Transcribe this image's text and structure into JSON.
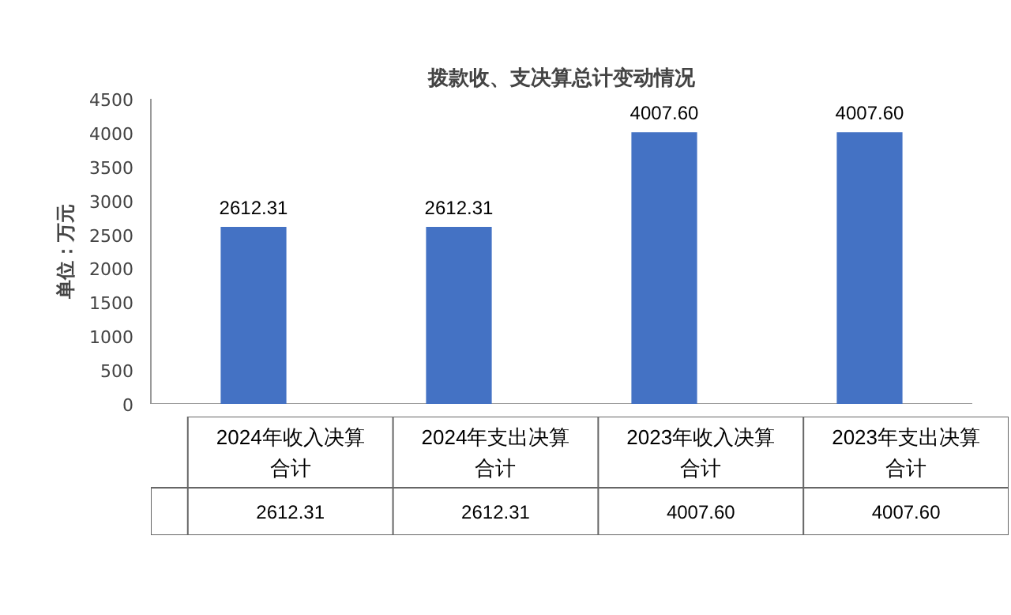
{
  "chart_data": {
    "type": "bar",
    "title": "拨款收、支决算总计变动情况",
    "ylabel": "单位：万元",
    "categories": [
      "2024年收入决算合计",
      "2024年支出决算合计",
      "2023年收入决算合计",
      "2023年支出决算合计"
    ],
    "series": [
      {
        "color": "#4472c4",
        "values": [
          2612.31,
          2612.31,
          4007.6,
          4007.6
        ],
        "value_labels": [
          "2612.31",
          "2612.31",
          "4007.60",
          "4007.60"
        ]
      }
    ],
    "ylim": [
      0,
      4500
    ],
    "yticks": [
      0,
      500,
      1000,
      1500,
      2000,
      2500,
      3000,
      3500,
      4000,
      4500
    ],
    "grid": false
  }
}
